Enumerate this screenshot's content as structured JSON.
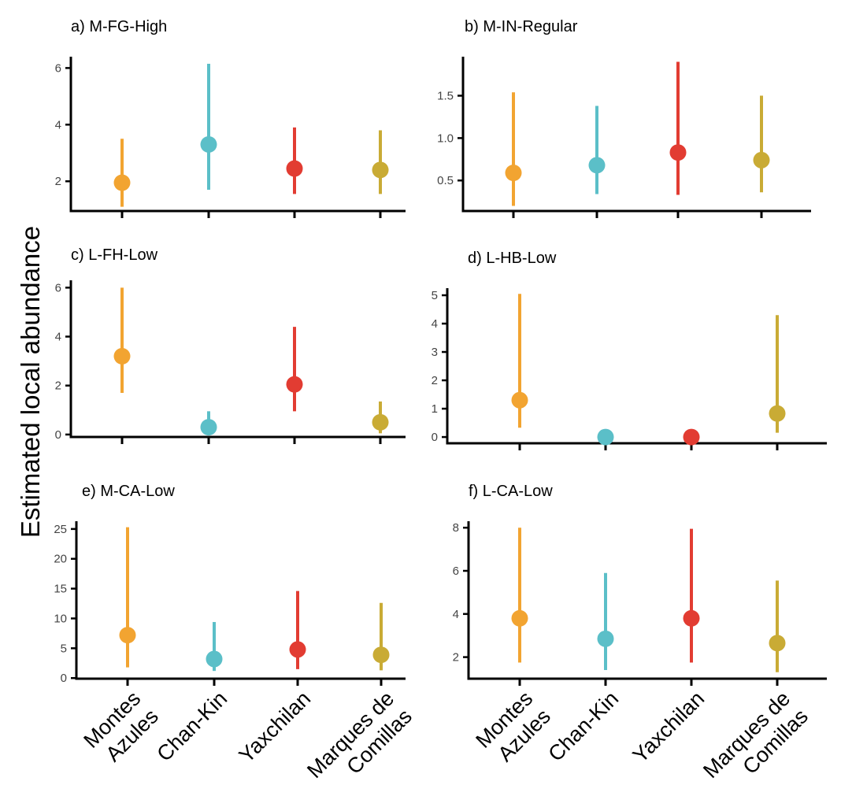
{
  "figure": {
    "ylabel": "Estimated local abundance"
  },
  "colors": {
    "Montes Azules": "#f2a431",
    "Chan-Kin": "#5bbfc8",
    "Yaxchilan": "#e23c32",
    "Marques de Comillas": "#c9ab35",
    "axis": "#000000"
  },
  "chart_data": [
    {
      "type": "scatter",
      "title": "a) M-FG-High",
      "categories": [
        "Montes Azules",
        "Chan-Kin",
        "Yaxchilan",
        "Marques de Comillas"
      ],
      "category_labels": [
        [
          "Montes",
          "Azules"
        ],
        [
          "Chan-Kin"
        ],
        [
          "Yaxchilan"
        ],
        [
          "Marques de",
          "Comillas"
        ]
      ],
      "estimate": [
        1.95,
        3.3,
        2.45,
        2.4
      ],
      "lower": [
        1.1,
        1.7,
        1.55,
        1.55
      ],
      "upper": [
        3.5,
        6.15,
        3.9,
        3.8
      ],
      "ylim": [
        0.95,
        6.4
      ],
      "yticks": [
        2,
        4,
        6
      ],
      "ytick_labels": [
        "2",
        "4",
        "6"
      ],
      "show_xlabels": false
    },
    {
      "type": "scatter",
      "title": "b) M-IN-Regular",
      "categories": [
        "Montes Azules",
        "Chan-Kin",
        "Yaxchilan",
        "Marques de Comillas"
      ],
      "category_labels": [
        [
          "Montes",
          "Azules"
        ],
        [
          "Chan-Kin"
        ],
        [
          "Yaxchilan"
        ],
        [
          "Marques de",
          "Comillas"
        ]
      ],
      "estimate": [
        0.59,
        0.68,
        0.83,
        0.74
      ],
      "lower": [
        0.2,
        0.34,
        0.33,
        0.36
      ],
      "upper": [
        1.54,
        1.38,
        1.9,
        1.5
      ],
      "ylim": [
        0.14,
        1.96
      ],
      "yticks": [
        0.5,
        1.0,
        1.5
      ],
      "ytick_labels": [
        "0.5",
        "1.0",
        "1.5"
      ],
      "show_xlabels": false
    },
    {
      "type": "scatter",
      "title": "c) L-FH-Low",
      "categories": [
        "Montes Azules",
        "Chan-Kin",
        "Yaxchilan",
        "Marques de Comillas"
      ],
      "category_labels": [
        [
          "Montes",
          "Azules"
        ],
        [
          "Chan-Kin"
        ],
        [
          "Yaxchilan"
        ],
        [
          "Marques de",
          "Comillas"
        ]
      ],
      "estimate": [
        3.2,
        0.3,
        2.05,
        0.5
      ],
      "lower": [
        1.7,
        0.0,
        0.95,
        0.05
      ],
      "upper": [
        6.0,
        0.95,
        4.4,
        1.35
      ],
      "ylim": [
        -0.1,
        6.3
      ],
      "yticks": [
        0,
        2,
        4,
        6
      ],
      "ytick_labels": [
        "0",
        "2",
        "4",
        "6"
      ],
      "show_xlabels": false
    },
    {
      "type": "scatter",
      "title": "d) L-HB-Low",
      "categories": [
        "Montes Azules",
        "Chan-Kin",
        "Yaxchilan",
        "Marques de Comillas"
      ],
      "category_labels": [
        [
          "Montes",
          "Azules"
        ],
        [
          "Chan-Kin"
        ],
        [
          "Yaxchilan"
        ],
        [
          "Marques de",
          "Comillas"
        ]
      ],
      "estimate": [
        1.3,
        0.0,
        0.0,
        0.83
      ],
      "lower": [
        0.33,
        0.0,
        0.0,
        0.15
      ],
      "upper": [
        5.05,
        0.0,
        0.0,
        4.3
      ],
      "ylim": [
        -0.22,
        5.25
      ],
      "yticks": [
        0,
        1,
        2,
        3,
        4,
        5
      ],
      "ytick_labels": [
        "0",
        "1",
        "2",
        "3",
        "4",
        "5"
      ],
      "show_xlabels": false
    },
    {
      "type": "scatter",
      "title": "e) M-CA-Low",
      "categories": [
        "Montes Azules",
        "Chan-Kin",
        "Yaxchilan",
        "Marques de Comillas"
      ],
      "category_labels": [
        [
          "Montes",
          "Azules"
        ],
        [
          "Chan-Kin"
        ],
        [
          "Yaxchilan"
        ],
        [
          "Marques de",
          "Comillas"
        ]
      ],
      "estimate": [
        7.2,
        3.2,
        4.8,
        3.9
      ],
      "lower": [
        1.8,
        1.2,
        1.5,
        1.3
      ],
      "upper": [
        25.3,
        9.4,
        14.6,
        12.6
      ],
      "ylim": [
        -0.1,
        26.3
      ],
      "yticks": [
        0,
        5,
        10,
        15,
        20,
        25
      ],
      "ytick_labels": [
        "0",
        "5",
        "10",
        "15",
        "20",
        "25"
      ],
      "show_xlabels": true
    },
    {
      "type": "scatter",
      "title": "f) L-CA-Low",
      "categories": [
        "Montes Azules",
        "Chan-Kin",
        "Yaxchilan",
        "Marques de Comillas"
      ],
      "category_labels": [
        [
          "Montes",
          "Azules"
        ],
        [
          "Chan-Kin"
        ],
        [
          "Yaxchilan"
        ],
        [
          "Marques de",
          "Comillas"
        ]
      ],
      "estimate": [
        3.8,
        2.85,
        3.8,
        2.65
      ],
      "lower": [
        1.75,
        1.4,
        1.75,
        1.3
      ],
      "upper": [
        8.0,
        5.9,
        7.95,
        5.55
      ],
      "ylim": [
        1.0,
        8.3
      ],
      "yticks": [
        2,
        4,
        6,
        8
      ],
      "ytick_labels": [
        "2",
        "4",
        "6",
        "8"
      ],
      "show_xlabels": true
    }
  ]
}
